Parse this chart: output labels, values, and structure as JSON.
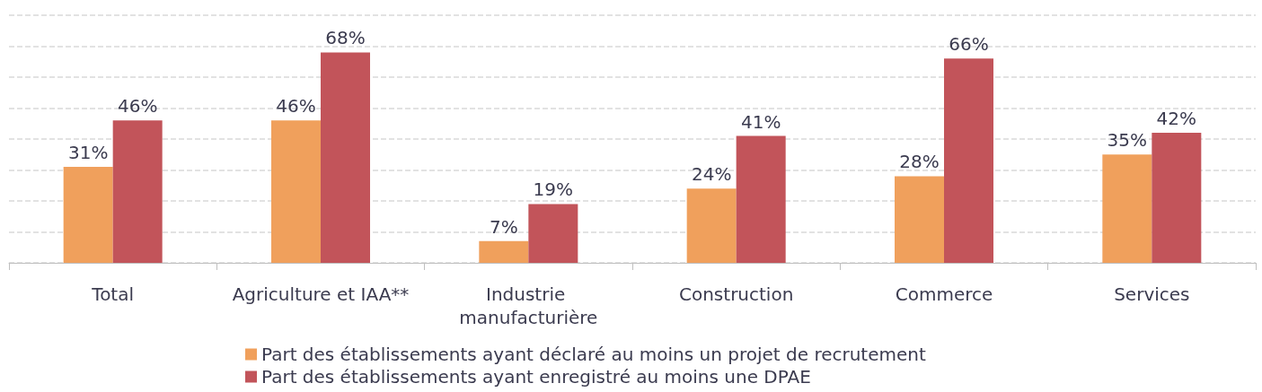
{
  "chart_data": {
    "type": "bar",
    "categories": [
      "Total",
      "Agriculture et IAA**",
      "Industrie manufacturière",
      "Construction",
      "Commerce",
      "Services"
    ],
    "series": [
      {
        "name": "Part des établissements ayant déclaré au moins un projet de recrutement",
        "color": "#f0a05c",
        "values": [
          31,
          46,
          7,
          24,
          28,
          35
        ],
        "value_labels": [
          "31%",
          "46%",
          "7%",
          "24%",
          "28%",
          "35%"
        ]
      },
      {
        "name": "Part des établissements ayant enregistré au moins une DPAE",
        "color": "#c2545a",
        "values": [
          46,
          68,
          19,
          41,
          66,
          42
        ],
        "value_labels": [
          "46%",
          "68%",
          "19%",
          "41%",
          "66%",
          "42%"
        ]
      }
    ],
    "ylim": [
      0,
      80
    ],
    "yticks": [
      {
        "value": 0,
        "label": null
      },
      {
        "value": 10,
        "label": null
      },
      {
        "value": 20,
        "label": null
      },
      {
        "value": 30,
        "label": null
      },
      {
        "value": 40,
        "label": null
      },
      {
        "value": 50,
        "label": null
      },
      {
        "value": 60,
        "label": null
      },
      {
        "value": 70,
        "label": null
      },
      {
        "value": 80,
        "label": null
      }
    ],
    "grid": "y",
    "legend": "bottom",
    "tick_labels": "x"
  }
}
